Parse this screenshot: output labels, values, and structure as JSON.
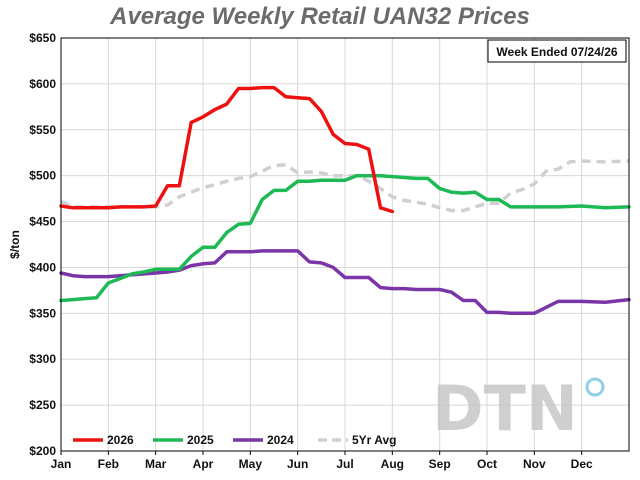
{
  "chart_data": {
    "type": "line",
    "title": "Average Weekly Retail UAN32 Prices",
    "ylabel": "$/ton",
    "annotation": "Week Ended 07/24/26",
    "ylim": [
      200,
      650
    ],
    "xlim": [
      0,
      12
    ],
    "yticks": [
      "$200",
      "$250",
      "$300",
      "$350",
      "$400",
      "$450",
      "$500",
      "$550",
      "$600",
      "$650"
    ],
    "yvalues": [
      200,
      250,
      300,
      350,
      400,
      450,
      500,
      550,
      600,
      650
    ],
    "xticks": [
      "Jan",
      "Feb",
      "Mar",
      "Apr",
      "May",
      "Jun",
      "Jul",
      "Aug",
      "Sep",
      "Oct",
      "Nov",
      "Dec"
    ],
    "grid": true,
    "legend_position": "bottom-left",
    "series": [
      {
        "name": "2026",
        "color": "#ee1111",
        "dashed": false,
        "x": [
          0,
          0.25,
          0.5,
          0.75,
          1,
          1.25,
          1.5,
          1.75,
          2,
          2.25,
          2.5,
          2.75,
          3,
          3.25,
          3.5,
          3.75,
          4,
          4.25,
          4.5,
          4.75,
          5,
          5.25,
          5.5,
          5.75,
          6,
          6.25,
          6.5,
          6.75,
          7
        ],
        "y": [
          467,
          465,
          465,
          465,
          465,
          466,
          466,
          466,
          467,
          489,
          489,
          558,
          564,
          572,
          578,
          595,
          595,
          596,
          596,
          586,
          585,
          584,
          570,
          545,
          535,
          534,
          529,
          465,
          461
        ]
      },
      {
        "name": "2025",
        "color": "#1db954",
        "dashed": false,
        "x": [
          0,
          0.25,
          0.5,
          0.75,
          1,
          1.25,
          1.5,
          1.75,
          2,
          2.25,
          2.5,
          2.75,
          3,
          3.25,
          3.5,
          3.75,
          4,
          4.25,
          4.5,
          4.75,
          5,
          5.25,
          5.5,
          5.75,
          6,
          6.25,
          6.5,
          6.75,
          7,
          7.25,
          7.5,
          7.75,
          8,
          8.25,
          8.5,
          8.75,
          9,
          9.25,
          9.5,
          9.75,
          10,
          10.5,
          11,
          11.5,
          12
        ],
        "y": [
          364,
          365,
          366,
          367,
          383,
          388,
          393,
          395,
          398,
          398,
          398,
          412,
          422,
          422,
          438,
          447,
          448,
          474,
          484,
          484,
          494,
          494,
          495,
          495,
          495,
          500,
          500,
          500,
          499,
          498,
          497,
          497,
          486,
          482,
          481,
          482,
          474,
          474,
          466,
          466,
          466,
          466,
          467,
          465,
          466
        ]
      },
      {
        "name": "2024",
        "color": "#7a35a8",
        "dashed": false,
        "x": [
          0,
          0.25,
          0.5,
          0.75,
          1,
          1.25,
          1.5,
          1.75,
          2,
          2.25,
          2.5,
          2.75,
          3,
          3.25,
          3.5,
          3.75,
          4,
          4.25,
          4.5,
          4.75,
          5,
          5.25,
          5.5,
          5.75,
          6,
          6.25,
          6.5,
          6.75,
          7,
          7.25,
          7.5,
          7.75,
          8,
          8.25,
          8.5,
          8.75,
          9,
          9.25,
          9.5,
          9.75,
          10,
          10.5,
          11,
          11.5,
          12
        ],
        "y": [
          394,
          391,
          390,
          390,
          390,
          391,
          392,
          393,
          394,
          395,
          397,
          402,
          404,
          405,
          417,
          417,
          417,
          418,
          418,
          418,
          418,
          406,
          405,
          400,
          389,
          389,
          389,
          378,
          377,
          377,
          376,
          376,
          376,
          373,
          364,
          364,
          351,
          351,
          350,
          350,
          350,
          363,
          363,
          362,
          365
        ]
      },
      {
        "name": "5Yr Avg",
        "color": "#d0d0d0",
        "dashed": true,
        "x": [
          0,
          0.25,
          0.5,
          0.75,
          1,
          1.25,
          1.5,
          1.75,
          2,
          2.25,
          2.5,
          2.75,
          3,
          3.25,
          3.5,
          3.75,
          4,
          4.25,
          4.5,
          4.75,
          5,
          5.25,
          5.5,
          5.75,
          6,
          6.25,
          6.5,
          6.75,
          7,
          7.25,
          7.5,
          7.75,
          8,
          8.25,
          8.5,
          8.75,
          9,
          9.25,
          9.5,
          9.75,
          10,
          10.25,
          10.5,
          10.75,
          11,
          11.5,
          12
        ],
        "y": [
          472,
          466,
          466,
          466,
          466,
          466,
          466,
          466,
          466,
          468,
          477,
          482,
          487,
          490,
          494,
          497,
          499,
          505,
          511,
          512,
          503,
          504,
          503,
          500,
          500,
          500,
          494,
          486,
          477,
          473,
          471,
          469,
          465,
          462,
          462,
          466,
          470,
          470,
          481,
          485,
          491,
          505,
          507,
          515,
          516,
          515,
          516
        ]
      }
    ],
    "logo_text": "DTN"
  }
}
